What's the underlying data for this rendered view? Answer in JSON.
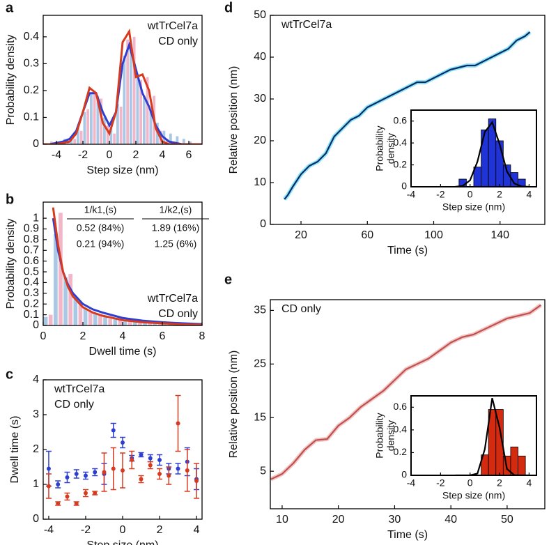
{
  "chart_data": [
    {
      "type": "histogram",
      "label": "a",
      "xlabel": "Step size (nm)",
      "ylabel": "Probability density",
      "xlim": [
        -5,
        7
      ],
      "ylim": [
        0,
        0.48
      ],
      "xticks": [
        -4,
        -2,
        0,
        2,
        4,
        6
      ],
      "yticks": [
        0,
        0.1,
        0.2,
        0.3,
        0.4
      ],
      "legend": "upper right",
      "bins": [
        -5,
        -4.5,
        -4,
        -3.5,
        -3,
        -2.5,
        -2,
        -1.5,
        -1,
        -0.5,
        0,
        0.5,
        1,
        1.5,
        2,
        2.5,
        3,
        3.5,
        4,
        4.5,
        5,
        5.5,
        6,
        6.5,
        7
      ],
      "series": [
        {
          "color": "#a9c8e6",
          "values": [
            0,
            0.01,
            0.01,
            0.02,
            0.03,
            0.06,
            0.12,
            0.19,
            0.18,
            0.1,
            0.06,
            0.15,
            0.33,
            0.36,
            0.26,
            0.18,
            0.13,
            0.08,
            0.05,
            0.04,
            0.03,
            0.02,
            0.01,
            0
          ]
        },
        {
          "color": "#f2b6c9",
          "values": [
            0,
            0,
            0,
            0.01,
            0.02,
            0.05,
            0.13,
            0.2,
            0.17,
            0.07,
            0.04,
            0.14,
            0.39,
            0.4,
            0.24,
            0.25,
            0.18,
            0.05,
            0.02,
            0.01,
            0,
            0,
            0,
            0
          ]
        }
      ],
      "curves": [
        {
          "name": "wtTrCel7a",
          "color": "#2e3fd0",
          "x": [
            -5,
            -4.5,
            -4,
            -3.5,
            -3,
            -2.5,
            -2,
            -1.5,
            -1,
            -0.5,
            0,
            0.5,
            1,
            1.5,
            2,
            2.5,
            3,
            3.5,
            4,
            4.5,
            5,
            5.5,
            6,
            6.5,
            7
          ],
          "values": [
            0,
            0,
            0.005,
            0.01,
            0.02,
            0.05,
            0.12,
            0.19,
            0.19,
            0.12,
            0.07,
            0.12,
            0.3,
            0.37,
            0.28,
            0.19,
            0.14,
            0.07,
            0.03,
            0.01,
            0.005,
            0,
            0,
            0,
            0
          ]
        },
        {
          "name": "CD only",
          "color": "#d63a1f",
          "x": [
            -5,
            -4.5,
            -4,
            -3.5,
            -3,
            -2.5,
            -2,
            -1.5,
            -1,
            -0.5,
            0,
            0.5,
            1,
            1.5,
            2,
            2.5,
            3,
            3.5,
            4,
            4.5,
            5,
            5.5,
            6,
            6.5,
            7
          ],
          "values": [
            0,
            0,
            0,
            0.005,
            0.01,
            0.04,
            0.12,
            0.21,
            0.19,
            0.08,
            0.04,
            0.12,
            0.38,
            0.42,
            0.25,
            0.26,
            0.2,
            0.06,
            0.01,
            0,
            0,
            0,
            0,
            0,
            0
          ]
        }
      ]
    },
    {
      "type": "histogram",
      "label": "b",
      "xlabel": "Dwell time (s)",
      "ylabel": "Probability density",
      "xlim": [
        0,
        8
      ],
      "ylim": [
        0,
        1.15
      ],
      "xticks": [
        0,
        2,
        4,
        6,
        8
      ],
      "yticks": [
        0,
        0.1,
        0.2,
        0.3,
        0.4,
        0.5,
        0.6,
        0.7,
        0.8,
        0.9,
        1
      ],
      "legend": "lower right",
      "bins": [
        0,
        0.5,
        1,
        1.5,
        2,
        2.5,
        3,
        3.5,
        4,
        4.5,
        5,
        5.5,
        6,
        6.5,
        7,
        7.5,
        8
      ],
      "series": [
        {
          "color": "#a9c8e6",
          "values": [
            0.08,
            0.85,
            0.45,
            0.25,
            0.16,
            0.11,
            0.08,
            0.06,
            0.05,
            0.04,
            0.03,
            0.025,
            0.02,
            0.015,
            0.01,
            0.01
          ]
        },
        {
          "color": "#f2b6c9",
          "values": [
            0.1,
            1.05,
            0.48,
            0.22,
            0.13,
            0.09,
            0.06,
            0.05,
            0.04,
            0.03,
            0.02,
            0.015,
            0.01,
            0.01,
            0.008,
            0.005
          ]
        }
      ],
      "curves": [
        {
          "name": "wtTrCel7a",
          "color": "#2e3fd0",
          "x": [
            0.5,
            0.75,
            1,
            1.25,
            1.5,
            2,
            2.5,
            3,
            4,
            5,
            6,
            7,
            8
          ],
          "values": [
            1.0,
            0.7,
            0.5,
            0.38,
            0.3,
            0.2,
            0.15,
            0.12,
            0.07,
            0.045,
            0.03,
            0.02,
            0.012
          ]
        },
        {
          "name": "CD only",
          "color": "#d63a1f",
          "x": [
            0.5,
            0.75,
            1,
            1.25,
            1.5,
            2,
            2.5,
            3,
            4,
            5,
            6,
            7,
            8
          ],
          "values": [
            1.1,
            0.75,
            0.5,
            0.36,
            0.27,
            0.17,
            0.12,
            0.09,
            0.05,
            0.03,
            0.02,
            0.01,
            0.006
          ]
        }
      ],
      "table": {
        "header": [
          "1/k1,(s)",
          "1/k2,(s)"
        ],
        "rows": [
          {
            "color": "#2e3fd0",
            "cells": [
              "0.52 (84%)",
              "1.89 (16%)"
            ]
          },
          {
            "color": "#d63a1f",
            "cells": [
              "0.21 (94%)",
              "1.25 (6%)"
            ]
          }
        ]
      }
    },
    {
      "type": "errorbar",
      "label": "c",
      "xlabel": "Step size (nm)",
      "ylabel": "Dwell time (s)",
      "xlim": [
        -4.3,
        4.3
      ],
      "ylim": [
        0,
        4
      ],
      "xticks": [
        -4,
        -2,
        0,
        2,
        4
      ],
      "yticks": [
        0,
        1,
        2,
        3,
        4
      ],
      "legend": "upper left",
      "x": [
        -4,
        -3.5,
        -3,
        -2.5,
        -2,
        -1.5,
        -1,
        -0.5,
        0,
        0.5,
        1,
        1.5,
        2,
        2.5,
        3,
        3.5,
        4
      ],
      "series": [
        {
          "name": "wtTrCel7a",
          "color": "#2e3fd0",
          "values": [
            1.45,
            1.0,
            1.2,
            1.3,
            1.25,
            1.35,
            1.3,
            2.55,
            2.2,
            1.75,
            1.85,
            1.75,
            1.7,
            1.45,
            1.45,
            1.65,
            1.15
          ],
          "errors": [
            0.5,
            0.1,
            0.15,
            0.12,
            0.1,
            0.1,
            0.3,
            0.2,
            0.15,
            0.08,
            0.06,
            0.1,
            0.15,
            0.15,
            0.15,
            0.4,
            0.3
          ]
        },
        {
          "name": "CD only",
          "color": "#d63a1f",
          "values": [
            0.95,
            0.45,
            0.65,
            0.45,
            0.75,
            0.75,
            1.35,
            1.45,
            1.4,
            1.7,
            1.15,
            1.55,
            1.3,
            1.25,
            2.75,
            1.4,
            1.1
          ],
          "errors": [
            0.35,
            0.05,
            0.1,
            0.05,
            0.1,
            0.05,
            0.55,
            0.6,
            0.5,
            0.25,
            0.1,
            0.1,
            0.15,
            0.25,
            0.8,
            0.6,
            0.5
          ]
        }
      ]
    },
    {
      "type": "line",
      "label": "d",
      "xlabel": "Time (s)",
      "ylabel": "Relative position (nm)",
      "xlim": [
        1.5,
        167
      ],
      "ylim": [
        0,
        50
      ],
      "xticks": [
        20,
        60,
        100,
        140
      ],
      "yticks": [
        0,
        10,
        20,
        30,
        40,
        50
      ],
      "legend": "upper left",
      "x": [
        10,
        12,
        15,
        20,
        25,
        30,
        35,
        40,
        45,
        50,
        55,
        60,
        65,
        70,
        75,
        80,
        85,
        90,
        95,
        100,
        105,
        110,
        115,
        120,
        125,
        130,
        135,
        140,
        145,
        150,
        155,
        158
      ],
      "series": [
        {
          "name": "wtTrCel7a",
          "color": "#0b2a6e",
          "raw_color": "#8ee6f2",
          "values": [
            6,
            7,
            9,
            12,
            14,
            15,
            17,
            21,
            23,
            25,
            26,
            28,
            29,
            30,
            31,
            32,
            33,
            34,
            34,
            35,
            36,
            37,
            37.5,
            38,
            38,
            39,
            40,
            41,
            42,
            44,
            45,
            46
          ]
        }
      ],
      "inset": {
        "type": "histogram",
        "xlabel": "Step size (nm)",
        "ylabel": [
          "Probability",
          "density"
        ],
        "xlim": [
          -4,
          4.5
        ],
        "ylim": [
          0,
          0.7
        ],
        "xticks": [
          -4,
          -2,
          0,
          2,
          4
        ],
        "yticks": [
          0,
          0.2,
          0.4,
          0.6
        ],
        "bins": [
          -0.75,
          -0.25,
          0.25,
          0.75,
          1.25,
          1.75,
          2.25,
          2.75,
          3.25,
          3.75
        ],
        "series": [
          {
            "color": "#1f33d6",
            "values": [
              0.07,
              0,
              0.18,
              0.52,
              0.62,
              0.42,
              0.2,
              0.13,
              0.07
            ]
          }
        ],
        "curves": [
          {
            "color": "#000000",
            "x": [
              -1,
              -0.5,
              0,
              0.5,
              1,
              1.5,
              2,
              2.5,
              3,
              3.5,
              4
            ],
            "values": [
              0,
              0.008,
              0.059,
              0.23,
              0.5,
              0.59,
              0.39,
              0.14,
              0.03,
              0.003,
              0
            ]
          }
        ]
      }
    },
    {
      "type": "line",
      "label": "e",
      "xlabel": "Time (s)",
      "ylabel": "Relative position (nm)",
      "xlim": [
        7.9,
        56.7
      ],
      "ylim": [
        -2,
        37
      ],
      "xticks": [
        10,
        20,
        30,
        40,
        50
      ],
      "yticks": [
        5,
        15,
        25,
        35
      ],
      "legend": "upper left",
      "x": [
        8,
        10,
        12,
        14,
        16,
        18,
        20,
        22,
        24,
        26,
        28,
        30,
        32,
        34,
        36,
        38,
        40,
        42,
        44,
        46,
        48,
        50,
        52,
        54,
        56
      ],
      "series": [
        {
          "name": "CD only",
          "color": "#c0504d",
          "raw_color": "#f0c8c8",
          "values": [
            3.5,
            4.5,
            6.5,
            9,
            10.8,
            11,
            13.5,
            15,
            17,
            18.5,
            20,
            22,
            24,
            25,
            26,
            27.5,
            29,
            30,
            30.5,
            31.5,
            32.5,
            33.5,
            34,
            34.5,
            36
          ]
        }
      ],
      "inset": {
        "type": "histogram",
        "xlabel": "Step size (nm)",
        "ylabel": [
          "Probability",
          "density"
        ],
        "xlim": [
          -4,
          4.5
        ],
        "ylim": [
          0,
          0.7
        ],
        "xticks": [
          -4,
          -2,
          0,
          2,
          4
        ],
        "yticks": [
          0,
          0.2,
          0.4,
          0.6
        ],
        "bins": [
          0.75,
          1.25,
          1.75,
          2.25,
          2.75,
          3.25,
          3.75
        ],
        "series": [
          {
            "color": "#d42a10",
            "values": [
              0.18,
              0.58,
              0.58,
              0.17,
              0.25,
              0.17
            ]
          }
        ],
        "curves": [
          {
            "color": "#000000",
            "x": [
              -1,
              -0.5,
              0,
              0.5,
              1,
              1.5,
              2,
              2.5,
              3,
              3.5,
              4
            ],
            "values": [
              0,
              0,
              0,
              0.016,
              0.23,
              0.68,
              0.42,
              0.056,
              0.002,
              0,
              0
            ]
          }
        ]
      }
    }
  ]
}
